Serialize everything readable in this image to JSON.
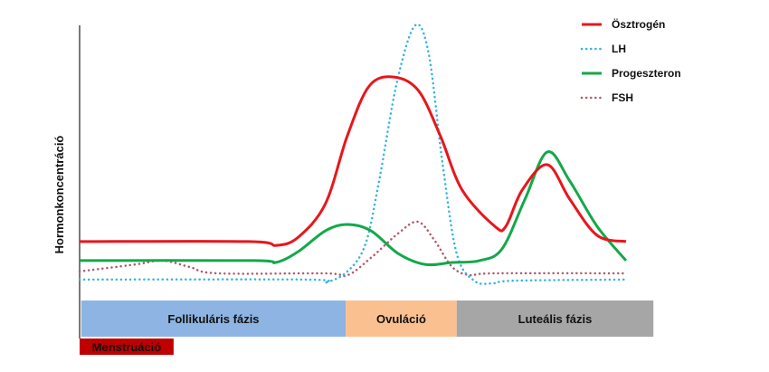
{
  "chart_data": {
    "type": "line",
    "title": "",
    "xlabel": "",
    "ylabel": "Hormonkoncentráció",
    "xlim": [
      0,
      100
    ],
    "ylim": [
      0,
      100
    ],
    "grid": false,
    "legend_position": "top-right",
    "series": [
      {
        "name": "Ösztrogén",
        "color": "#e8161b",
        "style": "solid",
        "points": [
          [
            0,
            17.7
          ],
          [
            31,
            17.7
          ],
          [
            36,
            16.3
          ],
          [
            40,
            19.3
          ],
          [
            45,
            31.7
          ],
          [
            49,
            56.7
          ],
          [
            53,
            75
          ],
          [
            57.5,
            78.3
          ],
          [
            62,
            73.3
          ],
          [
            66,
            56.7
          ],
          [
            70,
            36.7
          ],
          [
            76,
            23.3
          ],
          [
            78,
            23.3
          ],
          [
            81,
            36.7
          ],
          [
            85.6,
            46
          ],
          [
            89.7,
            33.3
          ],
          [
            94.7,
            20
          ],
          [
            100,
            17.7
          ]
        ]
      },
      {
        "name": "LH",
        "color": "#2fb4e0",
        "style": "dotted",
        "points": [
          [
            0,
            3.7
          ],
          [
            41.7,
            3.7
          ],
          [
            45,
            2.7
          ],
          [
            49,
            6.7
          ],
          [
            52.3,
            16.7
          ],
          [
            54.8,
            40
          ],
          [
            58.1,
            76.7
          ],
          [
            61.4,
            97.3
          ],
          [
            63.9,
            86.7
          ],
          [
            66.4,
            46.7
          ],
          [
            69,
            13.3
          ],
          [
            72.2,
            3.3
          ],
          [
            75.5,
            2.3
          ],
          [
            79.6,
            3.3
          ],
          [
            100,
            3.7
          ]
        ]
      },
      {
        "name": "Progeszteron",
        "color": "#14a84a",
        "style": "solid",
        "points": [
          [
            0,
            10.7
          ],
          [
            31.8,
            10.7
          ],
          [
            35.9,
            10
          ],
          [
            40,
            14
          ],
          [
            45,
            21.7
          ],
          [
            49,
            24
          ],
          [
            53.3,
            21.7
          ],
          [
            58.3,
            13.3
          ],
          [
            63.2,
            9.3
          ],
          [
            68.2,
            10
          ],
          [
            73.2,
            10.7
          ],
          [
            77.3,
            15
          ],
          [
            81.5,
            33.3
          ],
          [
            85.6,
            50.7
          ],
          [
            89.7,
            40
          ],
          [
            94.7,
            23.3
          ],
          [
            100,
            10.7
          ]
        ]
      },
      {
        "name": "FSH",
        "color": "#b05a66",
        "style": "dotted",
        "points": [
          [
            0,
            6.7
          ],
          [
            10.3,
            9.3
          ],
          [
            15.2,
            10.7
          ],
          [
            20.2,
            8.3
          ],
          [
            25.2,
            6
          ],
          [
            45,
            6
          ],
          [
            49,
            5.3
          ],
          [
            53.3,
            11.7
          ],
          [
            58.3,
            20.7
          ],
          [
            61.9,
            25
          ],
          [
            64.9,
            18.3
          ],
          [
            68.2,
            8.3
          ],
          [
            71.5,
            5.3
          ],
          [
            75.7,
            6
          ],
          [
            100,
            6
          ]
        ]
      }
    ],
    "phases": [
      {
        "label": "Follikuláris  fázis",
        "start": 0.3,
        "end": 48.7,
        "color": "#8db4e2"
      },
      {
        "label": "Ovuláció",
        "start": 48.7,
        "end": 69,
        "color": "#fac090"
      },
      {
        "label": "Luteális fázis",
        "start": 69,
        "end": 105,
        "color": "#a6a6a6"
      }
    ],
    "menstruation": {
      "label": "Menstruáció",
      "start": 0,
      "end": 17.2,
      "color": "#c00000"
    }
  }
}
